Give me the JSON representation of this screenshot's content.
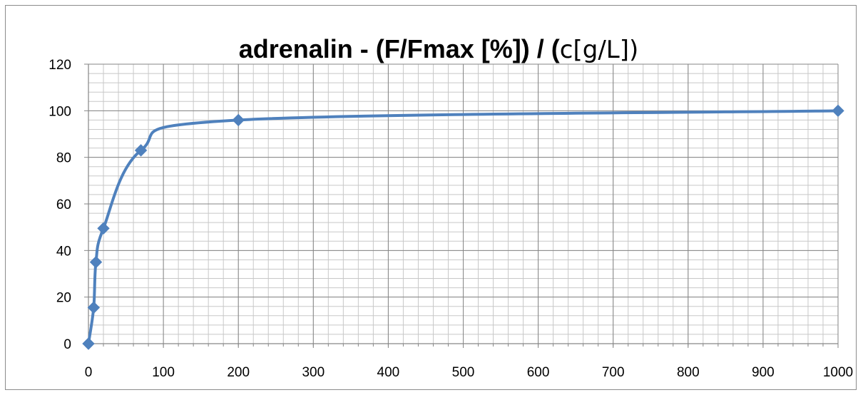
{
  "chart_data": {
    "type": "scatter",
    "title": "adrenalin   -   (F/Fmax [%]) / (c[g/L])",
    "title_parts": {
      "bold": "adrenalin   -   (F/Fmax [%]) / (",
      "light": "c[g/L])"
    },
    "xlabel": "",
    "ylabel": "",
    "xlim": [
      0,
      1000
    ],
    "ylim": [
      0,
      120
    ],
    "x_ticks": [
      "0",
      "100",
      "200",
      "300",
      "400",
      "500",
      "600",
      "700",
      "800",
      "900",
      "1000"
    ],
    "y_ticks": [
      "0",
      "20",
      "40",
      "60",
      "80",
      "100",
      "120"
    ],
    "grid": true,
    "legend": "none",
    "line_style": "smoothed line with diamond markers",
    "series": [
      {
        "color": "#4f81bd",
        "x": [
          0,
          7,
          10,
          20,
          70,
          200,
          1000
        ],
        "y": [
          0,
          15.5,
          35,
          49.5,
          83,
          96,
          100
        ]
      }
    ]
  }
}
